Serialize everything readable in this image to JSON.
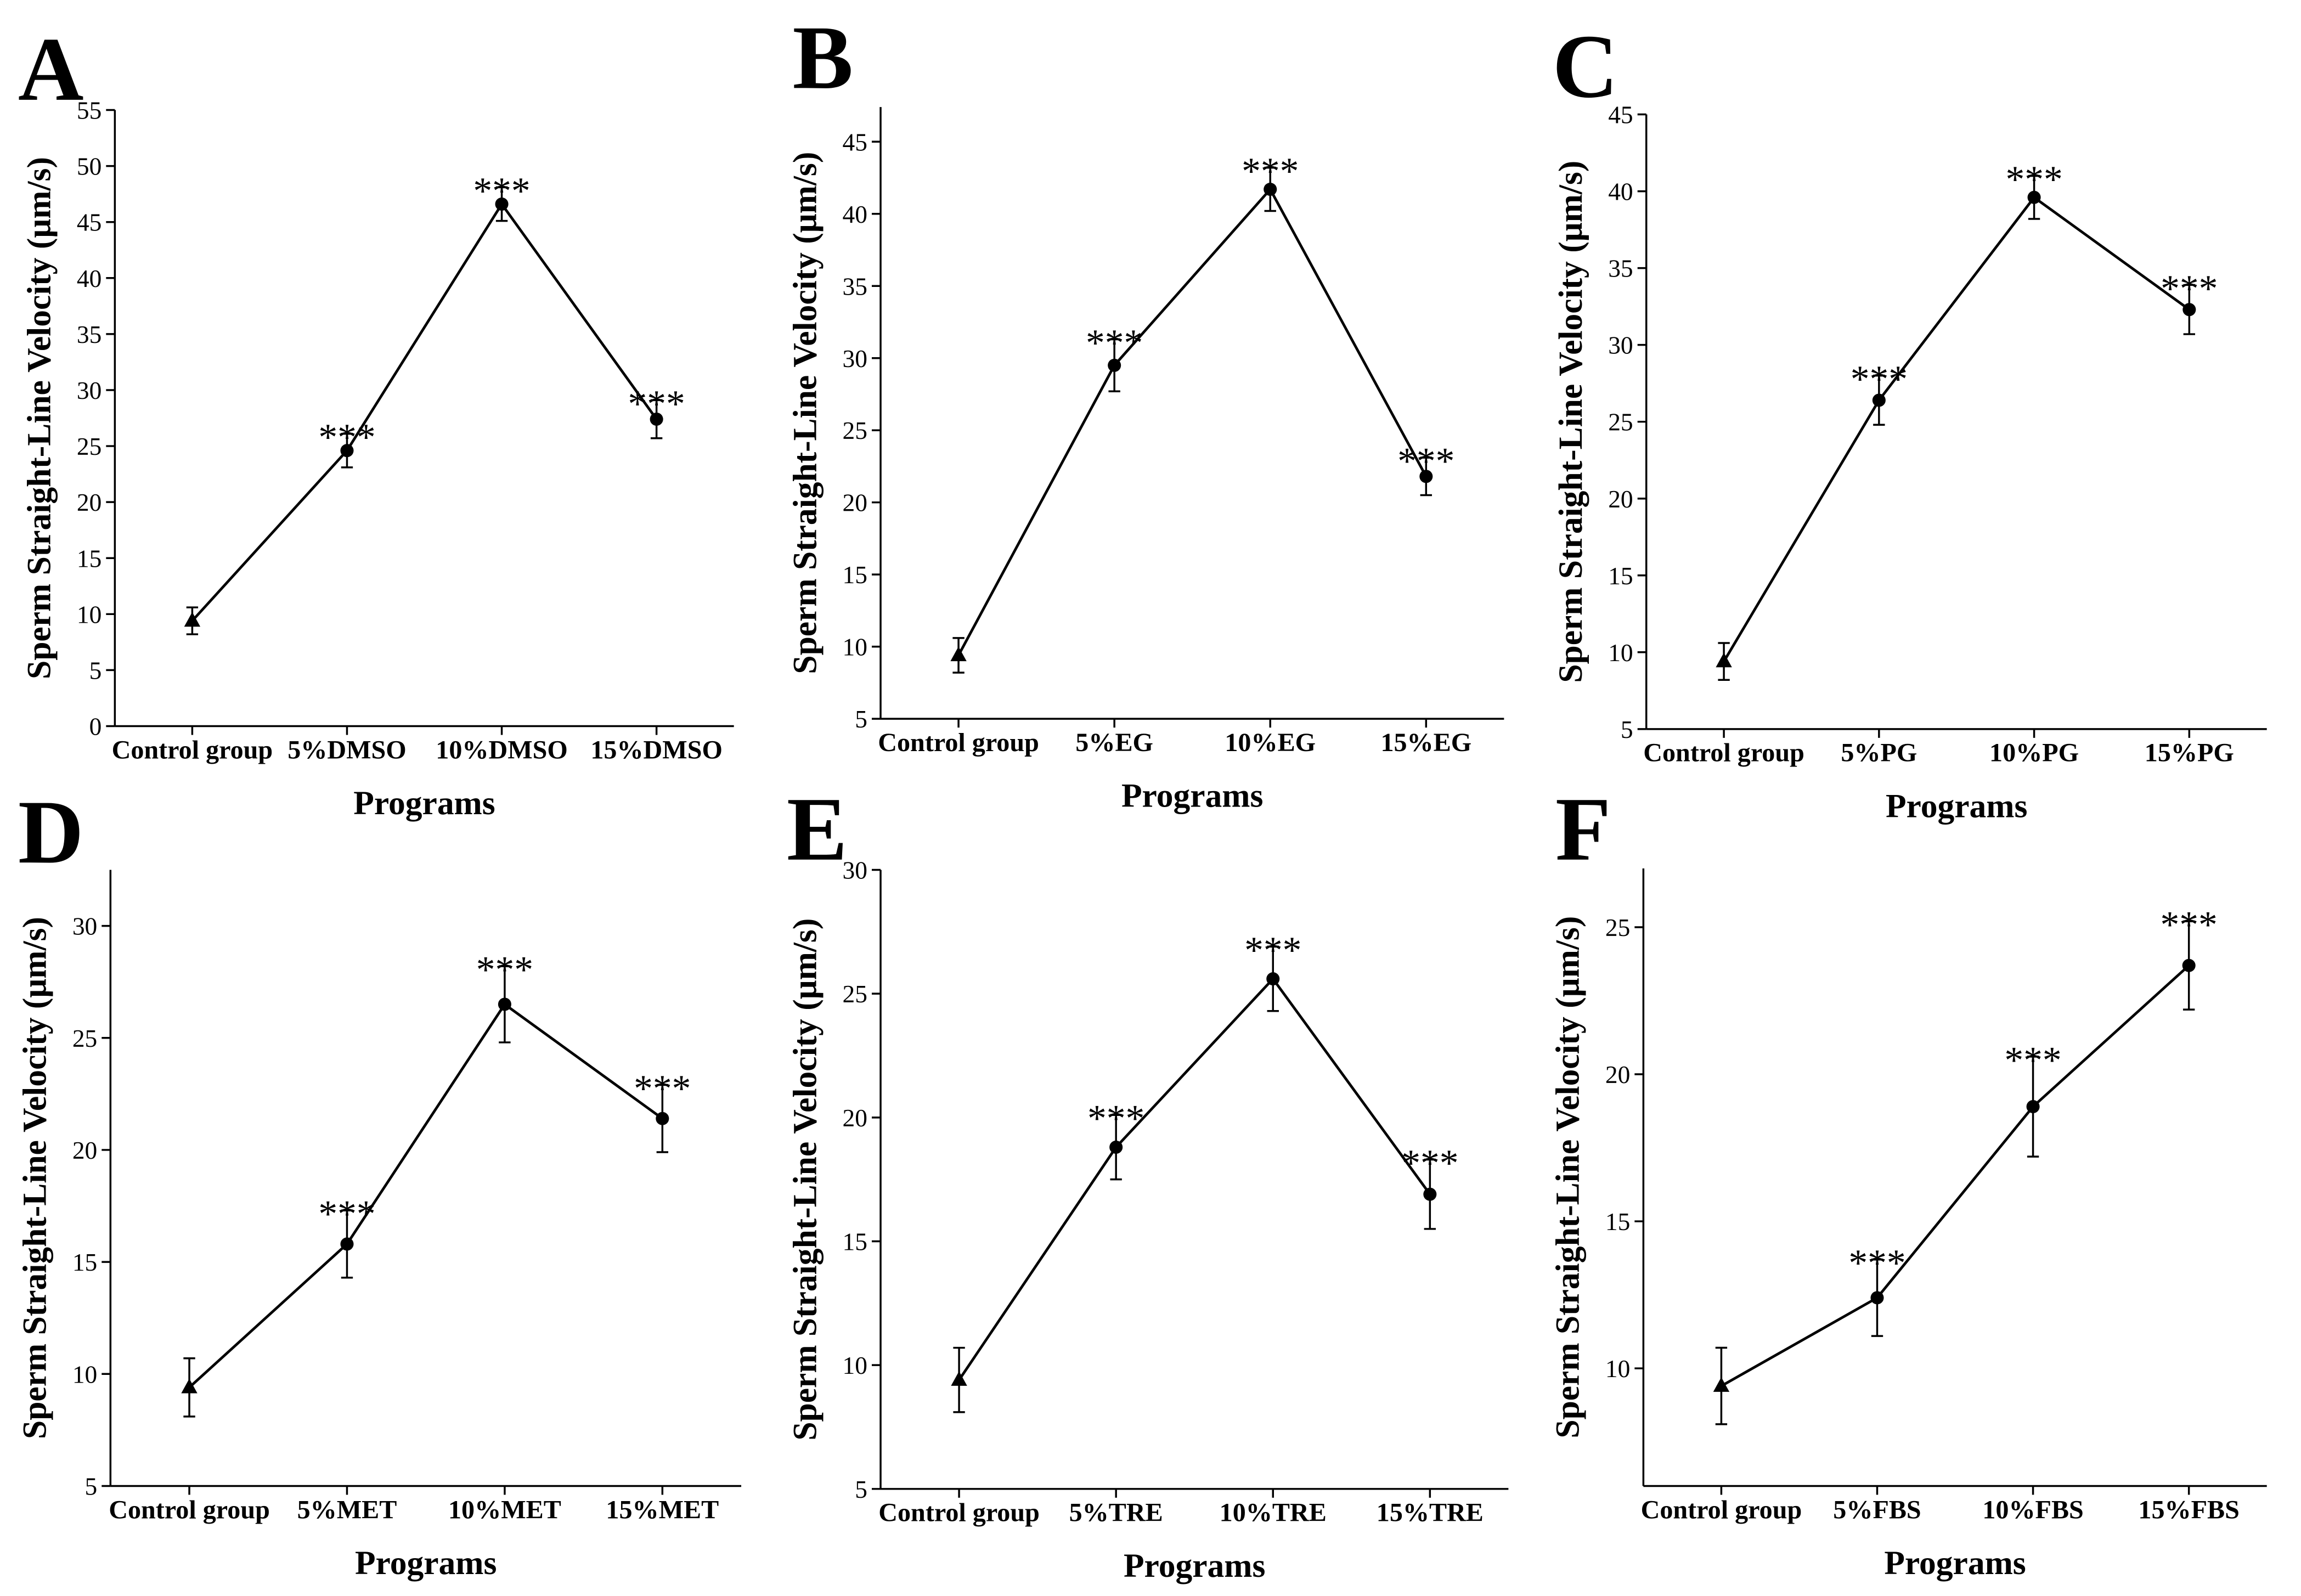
{
  "chart_data": [
    {
      "type": "line",
      "panel": "A",
      "xlabel": "Programs",
      "ylabel": "Sperm Straight-Line Velocity (μm/s)",
      "categories": [
        "Control group",
        "5%DMSO",
        "10%DMSO",
        "15%DMSO"
      ],
      "values": [
        9.4,
        24.6,
        46.6,
        27.4
      ],
      "errors": [
        1.2,
        1.5,
        1.5,
        1.7
      ],
      "annotations": [
        null,
        "***",
        "***",
        "***"
      ],
      "markers": [
        "triangle",
        "circle",
        "circle",
        "circle"
      ],
      "color": "#000000",
      "ylim": [
        0,
        55
      ],
      "yticks": [
        0,
        5,
        10,
        15,
        20,
        25,
        30,
        35,
        40,
        45,
        50,
        55
      ]
    },
    {
      "type": "line",
      "panel": "B",
      "xlabel": "Programs",
      "ylabel": "Sperm Straight-Line Velocity (μm/s)",
      "categories": [
        "Control group",
        "5%EG",
        "10%EG",
        "15%EG"
      ],
      "values": [
        9.4,
        29.5,
        41.7,
        21.8
      ],
      "errors": [
        1.2,
        1.8,
        1.5,
        1.3
      ],
      "annotations": [
        null,
        "***",
        "***",
        "***"
      ],
      "markers": [
        "triangle",
        "circle",
        "circle",
        "circle"
      ],
      "color": "#000000",
      "ylim": [
        5,
        47.4
      ],
      "yticks": [
        5,
        10,
        15,
        20,
        25,
        30,
        35,
        40,
        45
      ]
    },
    {
      "type": "line",
      "panel": "C",
      "xlabel": "Programs",
      "ylabel": "Sperm Straight-Line Velocity (μm/s)",
      "categories": [
        "Control group",
        "5%PG",
        "10%PG",
        "15%PG"
      ],
      "values": [
        9.4,
        26.4,
        39.6,
        32.3
      ],
      "errors": [
        1.2,
        1.6,
        1.4,
        1.6
      ],
      "annotations": [
        null,
        "***",
        "***",
        "***"
      ],
      "markers": [
        "triangle",
        "circle",
        "circle",
        "circle"
      ],
      "color": "#000000",
      "ylim": [
        5,
        45
      ],
      "yticks": [
        5,
        10,
        15,
        20,
        25,
        30,
        35,
        40,
        45
      ]
    },
    {
      "type": "line",
      "panel": "D",
      "xlabel": "Programs",
      "ylabel": "Sperm Straight-Line Velocity (μm/s)",
      "categories": [
        "Control group",
        "5%MET",
        "10%MET",
        "15%MET"
      ],
      "values": [
        9.4,
        15.8,
        26.5,
        21.4
      ],
      "errors": [
        1.3,
        1.5,
        1.7,
        1.5
      ],
      "annotations": [
        null,
        "***",
        "***",
        "***"
      ],
      "markers": [
        "triangle",
        "circle",
        "circle",
        "circle"
      ],
      "color": "#000000",
      "ylim": [
        5,
        32.5
      ],
      "yticks": [
        5,
        10,
        15,
        20,
        25,
        30
      ]
    },
    {
      "type": "line",
      "panel": "E",
      "xlabel": "Programs",
      "ylabel": "Sperm Straight-Line Velocity (μm/s)",
      "categories": [
        "Control group",
        "5%TRE",
        "10%TRE",
        "15%TRE"
      ],
      "values": [
        9.4,
        18.8,
        25.6,
        16.9
      ],
      "errors": [
        1.3,
        1.3,
        1.3,
        1.4
      ],
      "annotations": [
        null,
        "***",
        "***",
        "***"
      ],
      "markers": [
        "triangle",
        "circle",
        "circle",
        "circle"
      ],
      "color": "#000000",
      "ylim": [
        5,
        30
      ],
      "yticks": [
        5,
        10,
        15,
        20,
        25,
        30
      ]
    },
    {
      "type": "line",
      "panel": "F",
      "xlabel": "Programs",
      "ylabel": "Sperm Straight-Line Velocity (μm/s)",
      "categories": [
        "Control group",
        "5%FBS",
        "10%FBS",
        "15%FBS"
      ],
      "values": [
        9.4,
        12.4,
        18.9,
        23.7
      ],
      "errors": [
        1.3,
        1.3,
        1.7,
        1.5
      ],
      "annotations": [
        null,
        "***",
        "***",
        "***"
      ],
      "markers": [
        "triangle",
        "circle",
        "circle",
        "circle"
      ],
      "color": "#000000",
      "ylim": [
        6,
        27
      ],
      "yticks": [
        10,
        15,
        20,
        25
      ]
    }
  ]
}
